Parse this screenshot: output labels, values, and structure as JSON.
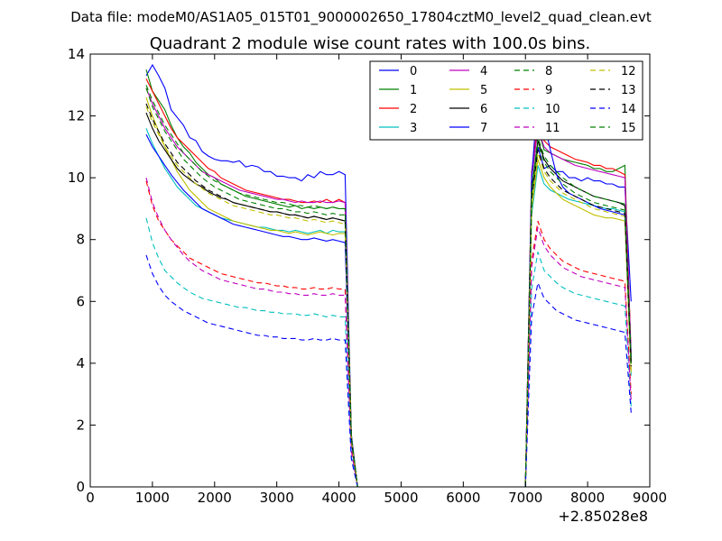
{
  "suptitle": "Data file: modeM0/AS1A05_015T01_9000002650_17804cztM0_level2_quad_clean.evt",
  "chart_data": {
    "type": "line",
    "title": "Quadrant 2 module wise count rates with 100.0s bins.",
    "xlabel": "",
    "ylabel": "",
    "x_offset_label": "+2.85028e8",
    "xlim": [
      0,
      9000
    ],
    "ylim": [
      0,
      14
    ],
    "xticks": [
      "0",
      "1000",
      "2000",
      "3000",
      "4000",
      "5000",
      "6000",
      "7000",
      "8000",
      "9000"
    ],
    "yticks": [
      "0",
      "2",
      "4",
      "6",
      "8",
      "10",
      "12",
      "14"
    ],
    "grid": false,
    "legend_position": "top-right",
    "x": [
      900,
      1000,
      1100,
      1200,
      1300,
      1400,
      1500,
      1600,
      1700,
      1800,
      1900,
      2000,
      2100,
      2200,
      2300,
      2400,
      2500,
      2600,
      2700,
      2800,
      2900,
      3000,
      3100,
      3200,
      3300,
      3400,
      3500,
      3600,
      3700,
      3800,
      3900,
      4000,
      4100,
      4200,
      4300,
      4400,
      7000,
      7100,
      7200,
      7300,
      7400,
      7500,
      7600,
      7700,
      7800,
      7900,
      8000,
      8100,
      8200,
      8300,
      8400,
      8500,
      8600,
      8700
    ],
    "series": [
      {
        "name": "0",
        "color": "#0000ff",
        "dash": "solid",
        "values": [
          13.3,
          13.65,
          13.3,
          12.9,
          12.2,
          11.95,
          11.7,
          11.3,
          11.2,
          10.85,
          10.7,
          10.6,
          10.55,
          10.55,
          10.5,
          10.55,
          10.35,
          10.4,
          10.35,
          10.2,
          10.2,
          10.05,
          10.05,
          10.0,
          10.0,
          9.9,
          10.1,
          10.0,
          10.2,
          10.1,
          10.1,
          10.2,
          10.1,
          1.7,
          0.0,
          0.0,
          0.0,
          9.7,
          11.0,
          10.3,
          10.4,
          10.2,
          10.2,
          10.0,
          10.0,
          9.9,
          10.0,
          9.9,
          9.9,
          9.8,
          9.8,
          9.7,
          9.7,
          6.0
        ]
      },
      {
        "name": "1",
        "color": "#008000",
        "dash": "solid",
        "values": [
          13.5,
          12.8,
          12.5,
          12.2,
          11.7,
          11.3,
          11.0,
          10.8,
          10.5,
          10.3,
          10.1,
          10.0,
          9.8,
          9.7,
          9.6,
          9.5,
          9.4,
          9.35,
          9.3,
          9.25,
          9.2,
          9.15,
          9.1,
          9.05,
          9.1,
          9.0,
          9.05,
          9.0,
          9.05,
          9.0,
          9.05,
          9.0,
          9.0,
          1.65,
          0.0,
          0.0,
          0.0,
          10.0,
          11.6,
          10.9,
          10.8,
          10.7,
          10.6,
          10.55,
          10.5,
          10.45,
          10.4,
          10.3,
          10.3,
          10.2,
          10.2,
          10.3,
          10.4,
          4.1
        ]
      },
      {
        "name": "2",
        "color": "#ff0000",
        "dash": "solid",
        "values": [
          13.2,
          12.8,
          12.4,
          12.0,
          11.6,
          11.3,
          11.1,
          10.9,
          10.7,
          10.5,
          10.3,
          10.2,
          10.0,
          9.9,
          9.8,
          9.7,
          9.6,
          9.55,
          9.5,
          9.45,
          9.4,
          9.35,
          9.3,
          9.3,
          9.25,
          9.2,
          9.2,
          9.25,
          9.2,
          9.3,
          9.2,
          9.3,
          9.2,
          1.6,
          0.0,
          0.0,
          0.0,
          10.2,
          11.8,
          11.2,
          11.0,
          10.9,
          10.8,
          10.7,
          10.6,
          10.55,
          10.5,
          10.4,
          10.4,
          10.3,
          10.3,
          10.2,
          10.1,
          4.3
        ]
      },
      {
        "name": "3",
        "color": "#00bfbf",
        "dash": "solid",
        "values": [
          11.6,
          11.1,
          10.7,
          10.3,
          10.0,
          9.7,
          9.5,
          9.3,
          9.1,
          9.0,
          8.9,
          8.8,
          8.7,
          8.65,
          8.6,
          8.55,
          8.5,
          8.45,
          8.4,
          8.4,
          8.35,
          8.3,
          8.3,
          8.25,
          8.3,
          8.25,
          8.2,
          8.25,
          8.3,
          8.2,
          8.3,
          8.25,
          8.25,
          1.5,
          0.0,
          0.0,
          0.0,
          8.8,
          10.4,
          9.8,
          9.6,
          9.5,
          9.4,
          9.3,
          9.25,
          9.2,
          9.15,
          9.1,
          9.05,
          9.0,
          9.0,
          8.95,
          8.9,
          3.6
        ]
      },
      {
        "name": "4",
        "color": "#bf00bf",
        "dash": "solid",
        "values": [
          12.9,
          12.4,
          12.0,
          11.6,
          11.3,
          11.0,
          10.8,
          10.6,
          10.4,
          10.2,
          10.1,
          10.0,
          9.9,
          9.8,
          9.7,
          9.6,
          9.55,
          9.5,
          9.45,
          9.4,
          9.35,
          9.3,
          9.3,
          9.25,
          9.2,
          9.25,
          9.2,
          9.2,
          9.25,
          9.2,
          9.2,
          9.25,
          9.2,
          1.6,
          0.0,
          0.0,
          0.0,
          10.0,
          11.6,
          11.0,
          10.8,
          10.7,
          10.6,
          10.5,
          10.4,
          10.35,
          10.3,
          10.25,
          10.2,
          10.15,
          10.1,
          10.05,
          10.0,
          4.2
        ]
      },
      {
        "name": "5",
        "color": "#bfbf00",
        "dash": "solid",
        "values": [
          12.6,
          12.0,
          11.5,
          11.0,
          10.6,
          10.2,
          9.9,
          9.6,
          9.4,
          9.2,
          9.0,
          8.9,
          8.8,
          8.7,
          8.6,
          8.55,
          8.5,
          8.45,
          8.4,
          8.35,
          8.3,
          8.3,
          8.25,
          8.2,
          8.25,
          8.2,
          8.15,
          8.2,
          8.25,
          8.2,
          8.15,
          8.2,
          8.2,
          1.5,
          0.0,
          0.0,
          0.0,
          9.0,
          10.6,
          10.0,
          9.7,
          9.5,
          9.3,
          9.2,
          9.1,
          9.0,
          8.9,
          8.8,
          8.75,
          8.7,
          8.7,
          8.65,
          8.6,
          3.7
        ]
      },
      {
        "name": "6",
        "color": "#000000",
        "dash": "solid",
        "values": [
          12.1,
          11.6,
          11.2,
          10.9,
          10.6,
          10.3,
          10.1,
          9.95,
          9.8,
          9.7,
          9.55,
          9.45,
          9.35,
          9.3,
          9.2,
          9.15,
          9.1,
          9.05,
          9.0,
          8.95,
          8.9,
          8.9,
          8.85,
          8.8,
          8.8,
          8.75,
          8.7,
          8.75,
          8.7,
          8.65,
          8.7,
          8.65,
          8.6,
          1.55,
          0.0,
          0.0,
          0.0,
          9.6,
          11.2,
          10.6,
          10.3,
          10.1,
          9.9,
          9.8,
          9.7,
          9.6,
          9.5,
          9.4,
          9.35,
          9.3,
          9.25,
          9.2,
          9.1,
          4.0
        ]
      },
      {
        "name": "7",
        "color": "#0000ff",
        "dash": "solid",
        "values": [
          11.4,
          11.0,
          10.7,
          10.4,
          10.1,
          9.85,
          9.6,
          9.4,
          9.2,
          9.0,
          8.9,
          8.8,
          8.7,
          8.6,
          8.5,
          8.45,
          8.4,
          8.35,
          8.3,
          8.25,
          8.2,
          8.15,
          8.1,
          8.1,
          8.05,
          8.0,
          8.0,
          8.05,
          8.0,
          7.95,
          8.0,
          7.95,
          7.9,
          1.45,
          0.0,
          0.0,
          0.0,
          10.0,
          12.7,
          11.8,
          10.9,
          10.1,
          9.7,
          9.5,
          9.4,
          9.3,
          9.2,
          9.1,
          9.0,
          8.95,
          8.9,
          8.85,
          8.8,
          4.2
        ]
      },
      {
        "name": "8",
        "color": "#008000",
        "dash": "dashed",
        "values": [
          12.9,
          12.3,
          11.9,
          11.5,
          11.2,
          10.9,
          10.6,
          10.4,
          10.2,
          10.0,
          9.85,
          9.7,
          9.6,
          9.5,
          9.4,
          9.3,
          9.25,
          9.2,
          9.15,
          9.1,
          9.05,
          9.0,
          9.0,
          8.95,
          8.9,
          8.9,
          8.85,
          8.9,
          8.85,
          8.8,
          8.85,
          8.8,
          8.8,
          1.55,
          0.0,
          0.0,
          0.0,
          9.4,
          11.1,
          10.5,
          10.2,
          10.0,
          9.8,
          9.65,
          9.5,
          9.4,
          9.3,
          9.2,
          9.15,
          9.1,
          9.05,
          9.0,
          8.95,
          4.0
        ]
      },
      {
        "name": "9",
        "color": "#ff0000",
        "dash": "dashed",
        "values": [
          9.9,
          9.1,
          8.6,
          8.3,
          8.0,
          7.8,
          7.6,
          7.4,
          7.3,
          7.2,
          7.1,
          7.0,
          6.9,
          6.85,
          6.8,
          6.75,
          6.7,
          6.65,
          6.6,
          6.6,
          6.55,
          6.5,
          6.5,
          6.45,
          6.45,
          6.4,
          6.4,
          6.45,
          6.4,
          6.4,
          6.45,
          6.4,
          6.4,
          1.2,
          0.0,
          0.0,
          0.0,
          7.3,
          8.6,
          8.0,
          7.7,
          7.5,
          7.3,
          7.2,
          7.1,
          7.0,
          6.95,
          6.9,
          6.85,
          6.8,
          6.75,
          6.7,
          6.65,
          3.0
        ]
      },
      {
        "name": "10",
        "color": "#00bfbf",
        "dash": "dashed",
        "values": [
          8.7,
          7.9,
          7.4,
          7.0,
          6.8,
          6.6,
          6.45,
          6.3,
          6.2,
          6.1,
          6.05,
          6.0,
          5.95,
          5.9,
          5.85,
          5.8,
          5.8,
          5.75,
          5.7,
          5.7,
          5.65,
          5.65,
          5.6,
          5.6,
          5.6,
          5.55,
          5.55,
          5.6,
          5.55,
          5.5,
          5.55,
          5.5,
          5.5,
          1.0,
          0.0,
          0.0,
          0.0,
          6.4,
          7.6,
          7.0,
          6.8,
          6.6,
          6.45,
          6.35,
          6.25,
          6.2,
          6.15,
          6.1,
          6.05,
          6.0,
          5.95,
          5.9,
          5.85,
          2.6
        ]
      },
      {
        "name": "11",
        "color": "#bf00bf",
        "dash": "dashed",
        "values": [
          10.0,
          9.2,
          8.7,
          8.3,
          8.0,
          7.75,
          7.5,
          7.3,
          7.15,
          7.0,
          6.9,
          6.8,
          6.7,
          6.65,
          6.6,
          6.55,
          6.5,
          6.45,
          6.4,
          6.4,
          6.35,
          6.3,
          6.3,
          6.25,
          6.25,
          6.2,
          6.2,
          6.25,
          6.2,
          6.2,
          6.25,
          6.2,
          6.2,
          1.15,
          0.0,
          0.0,
          0.0,
          7.1,
          8.4,
          7.8,
          7.5,
          7.3,
          7.1,
          7.0,
          6.9,
          6.8,
          6.75,
          6.7,
          6.65,
          6.6,
          6.55,
          6.5,
          6.45,
          2.8
        ]
      },
      {
        "name": "12",
        "color": "#bfbf00",
        "dash": "dashed",
        "values": [
          12.3,
          11.8,
          11.4,
          11.0,
          10.7,
          10.4,
          10.2,
          10.0,
          9.8,
          9.65,
          9.5,
          9.4,
          9.3,
          9.2,
          9.1,
          9.05,
          9.0,
          8.95,
          8.9,
          8.85,
          8.8,
          8.8,
          8.75,
          8.7,
          8.7,
          8.65,
          8.6,
          8.65,
          8.6,
          8.55,
          8.6,
          8.55,
          8.5,
          1.5,
          0.0,
          0.0,
          0.0,
          9.2,
          10.8,
          10.2,
          9.9,
          9.7,
          9.5,
          9.4,
          9.3,
          9.2,
          9.1,
          9.0,
          8.95,
          8.9,
          8.85,
          8.8,
          8.75,
          3.8
        ]
      },
      {
        "name": "13",
        "color": "#000000",
        "dash": "dashed",
        "values": [
          12.4,
          11.9,
          11.5,
          11.1,
          10.8,
          10.5,
          10.3,
          10.1,
          9.9,
          9.75,
          9.6,
          9.5,
          9.4,
          9.3,
          9.2,
          9.15,
          9.1,
          9.05,
          9.0,
          8.95,
          8.9,
          8.9,
          8.85,
          8.8,
          8.8,
          8.75,
          8.7,
          8.75,
          8.7,
          8.65,
          8.7,
          8.65,
          8.6,
          1.55,
          0.0,
          0.0,
          0.0,
          9.3,
          10.9,
          10.3,
          10.0,
          9.8,
          9.6,
          9.5,
          9.4,
          9.3,
          9.2,
          9.1,
          9.05,
          9.0,
          8.95,
          8.9,
          8.85,
          3.9
        ]
      },
      {
        "name": "14",
        "color": "#0000ff",
        "dash": "dashed",
        "values": [
          7.5,
          6.9,
          6.5,
          6.2,
          6.0,
          5.85,
          5.7,
          5.6,
          5.5,
          5.4,
          5.3,
          5.25,
          5.2,
          5.15,
          5.1,
          5.05,
          5.0,
          4.95,
          4.9,
          4.9,
          4.85,
          4.85,
          4.8,
          4.8,
          4.8,
          4.75,
          4.75,
          4.8,
          4.75,
          4.75,
          4.8,
          4.75,
          4.75,
          0.9,
          0.0,
          0.0,
          0.0,
          5.5,
          6.6,
          6.1,
          5.9,
          5.7,
          5.6,
          5.5,
          5.4,
          5.35,
          5.3,
          5.25,
          5.2,
          5.15,
          5.1,
          5.05,
          5.0,
          2.4
        ]
      },
      {
        "name": "15",
        "color": "#008000",
        "dash": "dashed",
        "values": [
          13.0,
          12.5,
          12.1,
          11.7,
          11.4,
          11.1,
          10.8,
          10.6,
          10.4,
          10.2,
          10.05,
          9.9,
          9.8,
          9.7,
          9.6,
          9.5,
          9.45,
          9.4,
          9.35,
          9.3,
          9.25,
          9.2,
          9.2,
          9.15,
          9.1,
          9.1,
          9.05,
          9.1,
          9.05,
          9.0,
          9.05,
          9.0,
          9.0,
          1.6,
          0.0,
          0.0,
          0.0,
          9.6,
          11.3,
          10.7,
          10.4,
          10.2,
          10.0,
          9.85,
          9.7,
          9.6,
          9.5,
          9.4,
          9.35,
          9.3,
          9.25,
          9.2,
          9.15,
          4.1
        ]
      }
    ]
  }
}
